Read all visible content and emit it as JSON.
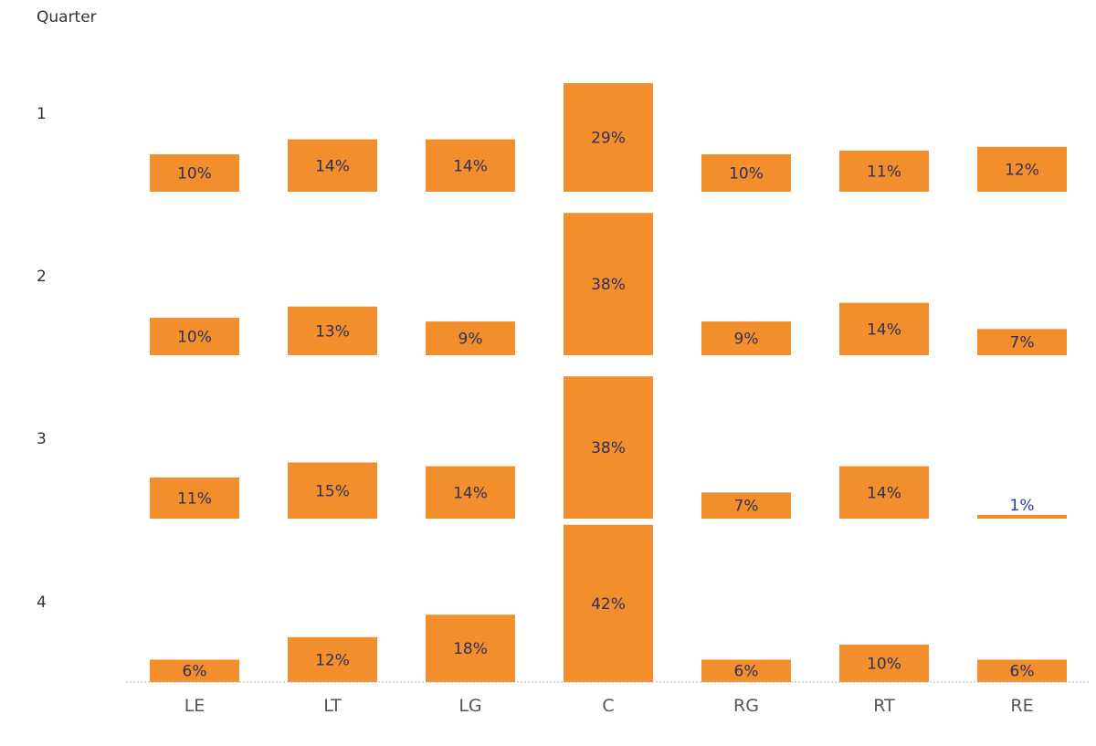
{
  "chart_data": {
    "type": "bar",
    "row_header": "Quarter",
    "rows": [
      "1",
      "2",
      "3",
      "4"
    ],
    "categories": [
      "LE",
      "LT",
      "LG",
      "C",
      "RG",
      "RT",
      "RE"
    ],
    "values": [
      [
        10,
        14,
        14,
        29,
        10,
        11,
        12
      ],
      [
        10,
        13,
        9,
        38,
        9,
        14,
        7
      ],
      [
        11,
        15,
        14,
        38,
        7,
        14,
        1
      ],
      [
        6,
        12,
        18,
        42,
        6,
        10,
        6
      ]
    ],
    "value_format": "percent",
    "bar_color": "#f28e2c",
    "label_color_inside": "#2f2f5a",
    "label_color_outside": "#2a3a9a",
    "grid": false,
    "legend": "none"
  }
}
